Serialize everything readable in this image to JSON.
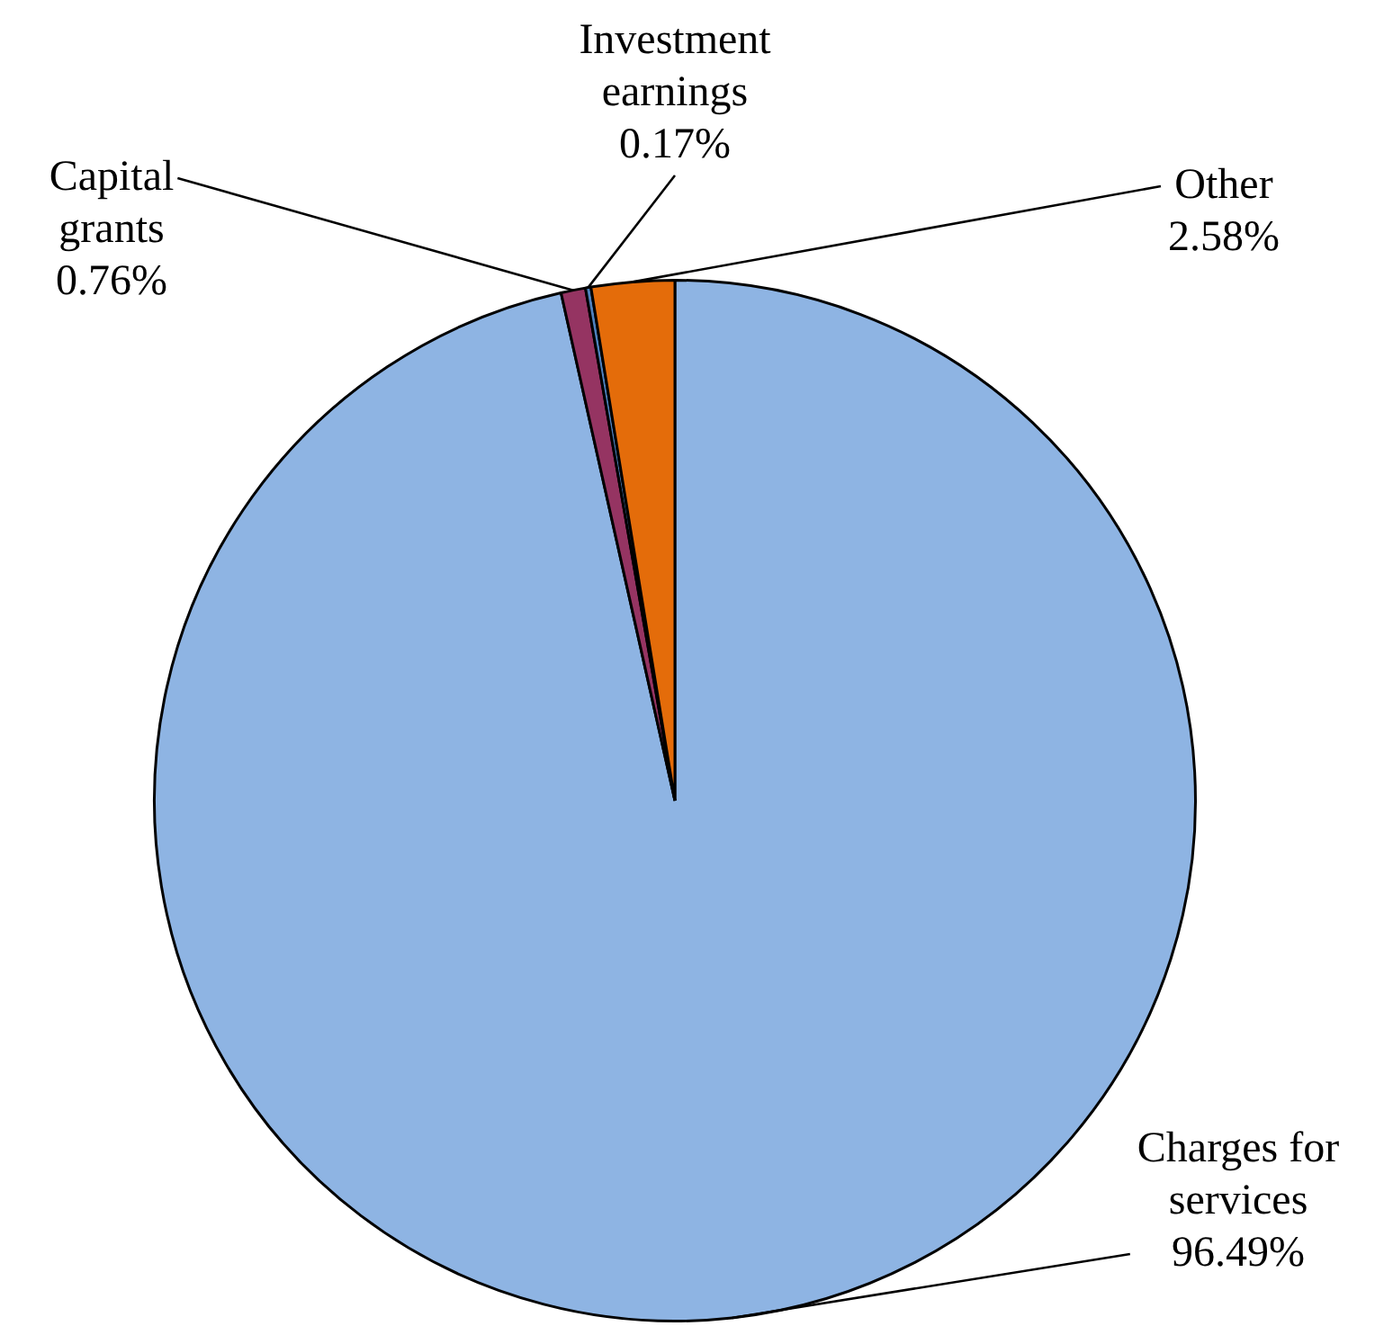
{
  "chart_data": {
    "type": "pie",
    "categories": [
      "Charges for services",
      "Capital grants",
      "Investment earnings",
      "Other"
    ],
    "values": [
      96.49,
      0.76,
      0.17,
      2.58
    ],
    "colors": [
      "#8eb4e3",
      "#953462",
      "#4f81bd",
      "#e46c0a"
    ],
    "value_labels": [
      "96.49%",
      "0.76%",
      "0.17%",
      "2.58%"
    ],
    "legend": false
  }
}
